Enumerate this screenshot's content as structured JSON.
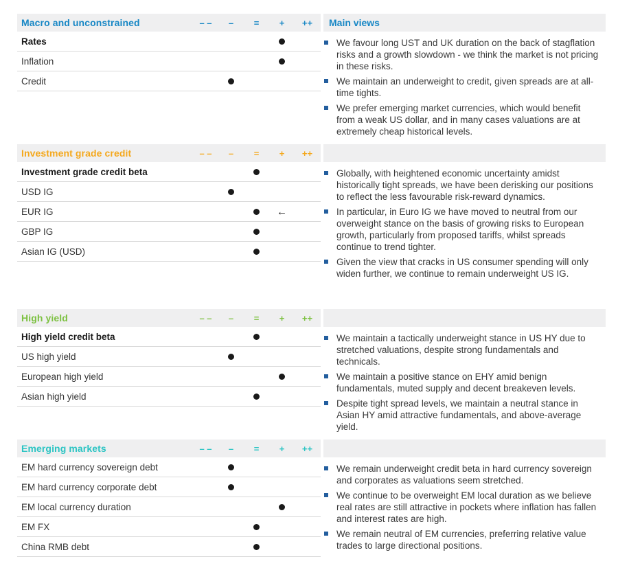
{
  "palette": {
    "blue": "#1787c5",
    "amber": "#f4a81d",
    "green": "#7dc142",
    "teal": "#2bc4c3",
    "band_gray": "#efeff0",
    "row_border": "#d9d9d9",
    "bullet_blue": "#235e9e",
    "dot_black": "#1a1a1a",
    "text_dark": "#3a3a3a"
  },
  "scale": [
    "– –",
    "–",
    "=",
    "+",
    "++"
  ],
  "arrow_glyph": "←",
  "main_views_title": "Main views",
  "sections": [
    {
      "title": "Macro and unconstrained",
      "color": "#1787c5",
      "rows": [
        {
          "label": "Rates",
          "bold": true,
          "dot": 3
        },
        {
          "label": "Inflation",
          "bold": false,
          "dot": 3
        },
        {
          "label": "Credit",
          "bold": false,
          "dot": 1
        }
      ],
      "views": [
        "We favour long UST and UK duration on the back of stagflation risks and a growth slowdown - we think the market is not pricing in these risks.",
        "We maintain an underweight to credit, given spreads are at all-time tights.",
        "We prefer emerging market currencies, which would benefit from a weak US dollar, and in many cases valuations are at extremely cheap historical levels."
      ]
    },
    {
      "title": "Investment grade credit",
      "color": "#f4a81d",
      "rows": [
        {
          "label": "Investment grade credit beta",
          "bold": true,
          "dot": 2
        },
        {
          "label": "USD IG",
          "bold": false,
          "dot": 1
        },
        {
          "label": "EUR IG",
          "bold": false,
          "dot": 2,
          "arrow": 3
        },
        {
          "label": "GBP IG",
          "bold": false,
          "dot": 2
        },
        {
          "label": "Asian IG (USD)",
          "bold": false,
          "dot": 2
        }
      ],
      "views": [
        "Globally, with heightened economic uncertainty amidst historically tight spreads, we have been derisking our positions to reflect the less favourable risk-reward dynamics.",
        "In particular, in Euro IG we have moved to neutral from our overweight stance on the basis of growing risks to European growth, particularly from proposed tariffs, whilst spreads continue to trend tighter.",
        "Given the view that cracks in US consumer spending will only widen further, we continue to remain underweight US IG."
      ]
    },
    {
      "title": "High yield",
      "color": "#7dc142",
      "rows": [
        {
          "label": "High yield credit beta",
          "bold": true,
          "dot": 2
        },
        {
          "label": "US high yield",
          "bold": false,
          "dot": 1
        },
        {
          "label": "European high yield",
          "bold": false,
          "dot": 3
        },
        {
          "label": "Asian high yield",
          "bold": false,
          "dot": 2
        }
      ],
      "views": [
        "We maintain a tactically underweight stance in US HY due to stretched valuations, despite strong fundamentals and technicals.",
        "We maintain a positive stance on EHY amid benign fundamentals, muted supply and decent breakeven levels.",
        "Despite tight spread levels, we maintain a neutral stance in Asian HY amid attractive fundamentals, and above-average yield."
      ]
    },
    {
      "title": "Emerging markets",
      "color": "#2bc4c3",
      "rows": [
        {
          "label": "EM hard currency sovereign debt",
          "bold": false,
          "dot": 1
        },
        {
          "label": "EM hard currency corporate debt",
          "bold": false,
          "dot": 1
        },
        {
          "label": "EM local currency duration",
          "bold": false,
          "dot": 3
        },
        {
          "label": "EM FX",
          "bold": false,
          "dot": 2
        },
        {
          "label": "China RMB debt",
          "bold": false,
          "dot": 2
        }
      ],
      "views": [
        "We remain underweight credit beta in hard currency sovereign and corporates as valuations seem stretched.",
        "We continue to be overweight EM local duration as we believe real rates are still attractive in pockets where inflation has fallen and interest rates are high.",
        "We remain neutral of EM currencies, preferring relative value trades to large directional positions."
      ]
    }
  ]
}
